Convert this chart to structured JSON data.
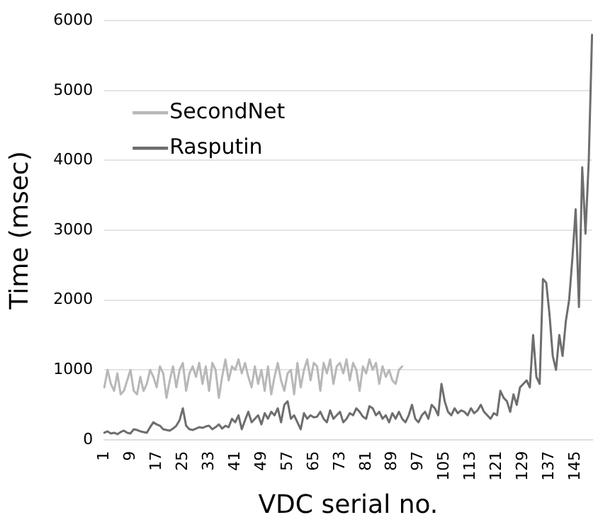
{
  "chart_data": {
    "type": "line",
    "xlabel": "VDC serial no.",
    "ylabel": "Time (msec)",
    "categories": [
      "1",
      null,
      null,
      null,
      null,
      null,
      null,
      null,
      "9",
      null,
      null,
      null,
      null,
      null,
      null,
      null,
      "17",
      null,
      null,
      null,
      null,
      null,
      null,
      null,
      "25",
      null,
      null,
      null,
      null,
      null,
      null,
      null,
      "33",
      null,
      null,
      null,
      null,
      null,
      null,
      null,
      "41",
      null,
      null,
      null,
      null,
      null,
      null,
      null,
      "49",
      null,
      null,
      null,
      null,
      null,
      null,
      null,
      "57",
      null,
      null,
      null,
      null,
      null,
      null,
      null,
      "65",
      null,
      null,
      null,
      null,
      null,
      null,
      null,
      "73",
      null,
      null,
      null,
      null,
      null,
      null,
      null,
      "81",
      null,
      null,
      null,
      null,
      null,
      null,
      null,
      "89",
      null,
      null,
      null,
      null,
      null,
      null,
      null,
      "97",
      null,
      null,
      null,
      null,
      null,
      null,
      null,
      "105",
      null,
      null,
      null,
      null,
      null,
      null,
      null,
      "113",
      null,
      null,
      null,
      null,
      null,
      null,
      null,
      "121",
      null,
      null,
      null,
      null,
      null,
      null,
      null,
      "129",
      null,
      null,
      null,
      null,
      null,
      null,
      null,
      "137",
      null,
      null,
      null,
      null,
      null,
      null,
      null,
      "145",
      null,
      null,
      null,
      null,
      null
    ],
    "series": [
      {
        "name": "SecondNet",
        "color": "#b8b8b8",
        "values": [
          750,
          1000,
          800,
          700,
          950,
          650,
          700,
          850,
          1000,
          700,
          650,
          900,
          700,
          800,
          1000,
          900,
          750,
          1050,
          950,
          600,
          850,
          1050,
          750,
          1000,
          1100,
          700,
          950,
          1050,
          900,
          1100,
          800,
          1050,
          700,
          1100,
          1000,
          600,
          900,
          1150,
          850,
          1050,
          1000,
          1150,
          950,
          1100,
          900,
          750,
          1050,
          800,
          1000,
          700,
          1050,
          650,
          900,
          1100,
          850,
          700,
          950,
          1000,
          650,
          1100,
          750,
          1000,
          1150,
          850,
          1100,
          1050,
          700,
          1100,
          950,
          1150,
          800,
          1050,
          1100,
          950,
          1150,
          850,
          1100,
          1000,
          700,
          1050,
          950,
          1150,
          1000,
          1100,
          800,
          1050,
          900,
          1000,
          850,
          800,
          1000,
          1050,
          null,
          null,
          null,
          null,
          null,
          null,
          null,
          null,
          null,
          null,
          null,
          null,
          null,
          null,
          null,
          null,
          null,
          null,
          null,
          null,
          null,
          null,
          null,
          null,
          null,
          null,
          null,
          null,
          null,
          null,
          null,
          null,
          null,
          null,
          null,
          null,
          null,
          null,
          null,
          null,
          null,
          null,
          null,
          null,
          null,
          null,
          null,
          null,
          null,
          null,
          null,
          null,
          null,
          null,
          null,
          null,
          null,
          null
        ]
      },
      {
        "name": "Rasputin",
        "color": "#6e6e6e",
        "values": [
          100,
          120,
          90,
          100,
          80,
          110,
          130,
          100,
          90,
          150,
          140,
          120,
          110,
          100,
          180,
          250,
          220,
          200,
          150,
          140,
          130,
          160,
          200,
          280,
          450,
          200,
          150,
          140,
          160,
          180,
          170,
          190,
          200,
          150,
          180,
          220,
          160,
          200,
          180,
          300,
          250,
          350,
          150,
          280,
          400,
          250,
          300,
          350,
          220,
          380,
          300,
          400,
          350,
          450,
          250,
          500,
          550,
          300,
          350,
          250,
          150,
          380,
          300,
          350,
          320,
          330,
          400,
          300,
          250,
          420,
          300,
          350,
          400,
          250,
          300,
          380,
          350,
          450,
          400,
          330,
          300,
          480,
          450,
          350,
          400,
          300,
          350,
          250,
          380,
          300,
          400,
          300,
          250,
          350,
          500,
          300,
          250,
          350,
          400,
          300,
          500,
          450,
          350,
          800,
          550,
          400,
          350,
          450,
          380,
          420,
          400,
          350,
          450,
          380,
          420,
          500,
          400,
          350,
          300,
          380,
          350,
          700,
          600,
          550,
          400,
          650,
          500,
          750,
          800,
          850,
          750,
          1500,
          900,
          800,
          2300,
          2250,
          1800,
          1200,
          1000,
          1500,
          1200,
          1700,
          2000,
          2600,
          3300,
          1900,
          3900,
          2950,
          4000,
          5800
        ]
      }
    ],
    "ylim": [
      0,
      6000
    ],
    "yticks": [
      0,
      1000,
      2000,
      3000,
      4000,
      5000,
      6000
    ],
    "grid": "y",
    "legend": "top left",
    "marker": "none",
    "line_style": "solid"
  }
}
